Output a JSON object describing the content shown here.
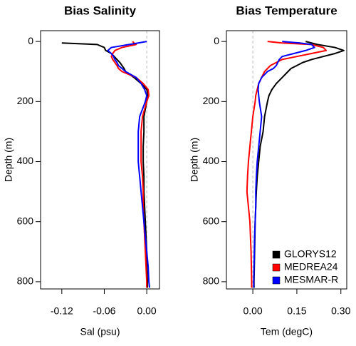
{
  "chart_data": [
    {
      "type": "profile",
      "title": "Bias Salinity",
      "x_label": "Sal (psu)",
      "y_label": "Depth (m)",
      "xlim": [
        -0.15,
        0.018
      ],
      "ylim": [
        -36,
        824
      ],
      "xticks": [
        {
          "value": -0.12,
          "label": "-0.12"
        },
        {
          "value": -0.06,
          "label": "-0.06"
        },
        {
          "value": 0,
          "label": "0.00"
        }
      ],
      "yticks": [
        0,
        200,
        400,
        600,
        800
      ],
      "reference_x": 0,
      "y": [
        0,
        5,
        10,
        20,
        30,
        40,
        50,
        60,
        70,
        80,
        90,
        100,
        120,
        140,
        160,
        180,
        200,
        250,
        300,
        350,
        400,
        450,
        500,
        550,
        600,
        650,
        700,
        750,
        800,
        820
      ],
      "series": [
        {
          "color": "#000000",
          "values": [
            null,
            -0.12,
            -0.07,
            -0.06,
            -0.058,
            -0.05,
            -0.046,
            -0.042,
            -0.038,
            -0.035,
            -0.032,
            -0.03,
            -0.018,
            -0.008,
            0.0,
            0.002,
            0.0,
            -0.004,
            -0.004,
            -0.005,
            -0.005,
            -0.004,
            -0.004,
            -0.003,
            -0.002,
            -0.001,
            0.0,
            0.0,
            0.001,
            0.001
          ]
        },
        {
          "color": "#ff0000",
          "values": [
            -0.02,
            -0.018,
            -0.015,
            -0.035,
            -0.045,
            -0.048,
            -0.05,
            -0.048,
            -0.045,
            -0.042,
            -0.04,
            -0.035,
            -0.015,
            -0.005,
            0.002,
            0.003,
            0.0,
            -0.006,
            -0.008,
            -0.008,
            -0.008,
            -0.006,
            -0.005,
            -0.005,
            -0.004,
            -0.003,
            -0.002,
            -0.001,
            0.0,
            0.0
          ]
        },
        {
          "color": "#0000ff",
          "values": [
            0.0,
            -0.012,
            -0.025,
            -0.05,
            -0.055,
            -0.05,
            -0.047,
            -0.045,
            -0.042,
            -0.04,
            -0.035,
            -0.03,
            -0.015,
            -0.008,
            -0.003,
            0.0,
            -0.002,
            -0.01,
            -0.012,
            -0.012,
            -0.012,
            -0.01,
            -0.008,
            -0.006,
            -0.004,
            -0.002,
            0.0,
            0.002,
            0.003,
            0.004
          ]
        }
      ]
    },
    {
      "type": "profile",
      "title": "Bias Temperature",
      "x_label": "Tem (degC)",
      "y_label": "Depth (m)",
      "xlim": [
        -0.09,
        0.32
      ],
      "ylim": [
        -36,
        824
      ],
      "xticks": [
        {
          "value": 0,
          "label": "0.00"
        },
        0.15,
        {
          "value": 0.3,
          "label": "0.30"
        }
      ],
      "yticks": [
        0,
        200,
        400,
        600,
        800
      ],
      "reference_x": 0,
      "legend": "bottomright",
      "y": [
        0,
        5,
        10,
        20,
        30,
        40,
        50,
        60,
        70,
        80,
        90,
        100,
        120,
        140,
        160,
        180,
        200,
        250,
        300,
        350,
        400,
        450,
        500,
        550,
        600,
        650,
        700,
        750,
        800,
        820
      ],
      "series": [
        {
          "name": "GLORYS12",
          "color": "#000000",
          "values": [
            0.18,
            0.2,
            0.22,
            0.28,
            0.31,
            0.28,
            0.24,
            0.2,
            0.17,
            0.15,
            0.13,
            0.12,
            0.1,
            0.08,
            0.065,
            0.055,
            0.05,
            0.04,
            0.035,
            0.025,
            0.02,
            0.015,
            0.012,
            0.01,
            0.008,
            0.007,
            0.006,
            0.005,
            0.004,
            0.004
          ]
        },
        {
          "name": "MEDREA24",
          "color": "#ff0000",
          "values": [
            0.05,
            0.1,
            0.2,
            0.24,
            0.25,
            0.2,
            0.15,
            0.1,
            0.08,
            0.06,
            0.05,
            0.04,
            0.03,
            0.02,
            0.015,
            0.01,
            0.008,
            0.0,
            -0.005,
            -0.01,
            -0.015,
            -0.018,
            -0.02,
            -0.015,
            -0.01,
            -0.008,
            -0.006,
            -0.005,
            -0.004,
            -0.004
          ]
        },
        {
          "name": "MESMAR-R",
          "color": "#0000ff",
          "values": [
            0.1,
            0.16,
            0.2,
            0.21,
            0.18,
            0.14,
            0.1,
            0.09,
            0.085,
            0.08,
            0.07,
            0.05,
            0.03,
            0.02,
            0.018,
            0.02,
            0.022,
            0.03,
            0.025,
            0.02,
            0.015,
            0.012,
            0.01,
            0.01,
            0.008,
            0.006,
            0.005,
            0.004,
            0.003,
            0.003
          ]
        }
      ]
    }
  ]
}
